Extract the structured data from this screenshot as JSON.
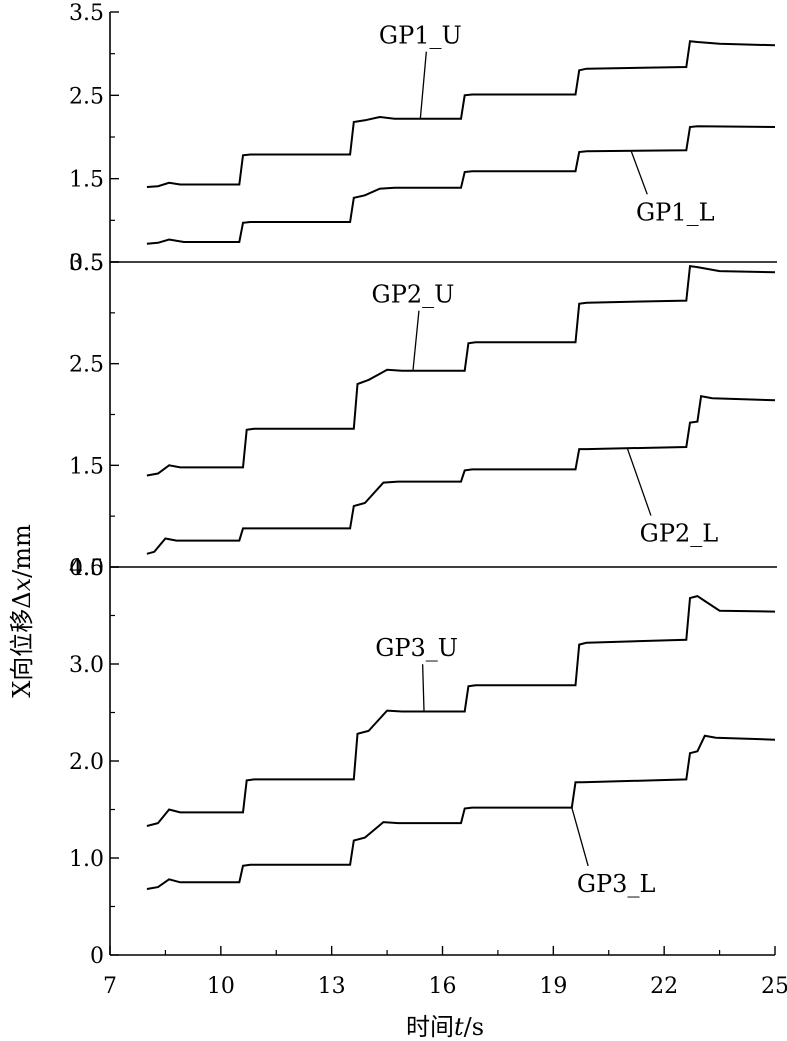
{
  "chart_data": {
    "type": "line",
    "layout": "three vertically stacked panels sharing the x axis",
    "grid": false,
    "xlabel_prefix": "时间",
    "xlabel_var": "t",
    "xlabel_unit": "/s",
    "ylabel_prefix": "X向位移Δ",
    "ylabel_var": "x",
    "ylabel_unit": "/mm",
    "xlim": [
      7,
      25
    ],
    "xticks": [
      "7",
      "10",
      "13",
      "16",
      "19",
      "22",
      "25"
    ],
    "panels": [
      {
        "ylim": [
          0.5,
          3.5
        ],
        "yticks": [
          "0.5",
          "1.5",
          "2.5",
          "3.5"
        ],
        "series": [
          {
            "name": "GP1_U",
            "points": [
              [
                8.0,
                1.4
              ],
              [
                8.3,
                1.41
              ],
              [
                8.6,
                1.45
              ],
              [
                8.9,
                1.43
              ],
              [
                10.5,
                1.43
              ],
              [
                10.6,
                1.78
              ],
              [
                10.8,
                1.79
              ],
              [
                13.5,
                1.79
              ],
              [
                13.6,
                2.18
              ],
              [
                13.9,
                2.2
              ],
              [
                14.3,
                2.24
              ],
              [
                14.7,
                2.22
              ],
              [
                16.5,
                2.22
              ],
              [
                16.6,
                2.5
              ],
              [
                16.8,
                2.51
              ],
              [
                19.6,
                2.51
              ],
              [
                19.7,
                2.8
              ],
              [
                19.9,
                2.82
              ],
              [
                22.6,
                2.84
              ],
              [
                22.7,
                3.15
              ],
              [
                22.9,
                3.14
              ],
              [
                23.5,
                3.12
              ],
              [
                25.0,
                3.1
              ]
            ],
            "label_at": [
              15.4,
              3.12
            ],
            "leader_to": [
              15.4,
              2.22
            ]
          },
          {
            "name": "GP1_L",
            "points": [
              [
                8.0,
                0.72
              ],
              [
                8.3,
                0.73
              ],
              [
                8.6,
                0.77
              ],
              [
                9.0,
                0.74
              ],
              [
                10.5,
                0.74
              ],
              [
                10.6,
                0.97
              ],
              [
                10.8,
                0.98
              ],
              [
                13.5,
                0.98
              ],
              [
                13.6,
                1.27
              ],
              [
                13.9,
                1.3
              ],
              [
                14.3,
                1.38
              ],
              [
                14.7,
                1.39
              ],
              [
                16.5,
                1.39
              ],
              [
                16.6,
                1.58
              ],
              [
                16.8,
                1.59
              ],
              [
                19.6,
                1.59
              ],
              [
                19.7,
                1.82
              ],
              [
                19.9,
                1.83
              ],
              [
                22.6,
                1.84
              ],
              [
                22.7,
                2.12
              ],
              [
                22.9,
                2.13
              ],
              [
                25.0,
                2.12
              ]
            ],
            "label_at": [
              22.3,
              1.0
            ],
            "leader_to": [
              21.1,
              1.84
            ]
          }
        ]
      },
      {
        "ylim": [
          0.5,
          3.5
        ],
        "yticks": [
          "0.5",
          "1.5",
          "2.5",
          "3.5"
        ],
        "series": [
          {
            "name": "GP2_U",
            "points": [
              [
                8.0,
                1.4
              ],
              [
                8.3,
                1.42
              ],
              [
                8.6,
                1.5
              ],
              [
                8.9,
                1.48
              ],
              [
                10.6,
                1.48
              ],
              [
                10.7,
                1.85
              ],
              [
                10.9,
                1.86
              ],
              [
                13.6,
                1.86
              ],
              [
                13.7,
                2.3
              ],
              [
                14.0,
                2.34
              ],
              [
                14.5,
                2.44
              ],
              [
                14.9,
                2.43
              ],
              [
                16.6,
                2.43
              ],
              [
                16.7,
                2.7
              ],
              [
                16.9,
                2.71
              ],
              [
                19.6,
                2.71
              ],
              [
                19.7,
                3.09
              ],
              [
                19.9,
                3.1
              ],
              [
                22.6,
                3.12
              ],
              [
                22.7,
                3.46
              ],
              [
                22.9,
                3.45
              ],
              [
                23.5,
                3.41
              ],
              [
                25.0,
                3.4
              ]
            ],
            "label_at": [
              15.2,
              3.1
            ],
            "leader_to": [
              15.2,
              2.43
            ]
          },
          {
            "name": "GP2_L",
            "points": [
              [
                8.0,
                0.63
              ],
              [
                8.2,
                0.65
              ],
              [
                8.5,
                0.78
              ],
              [
                8.8,
                0.76
              ],
              [
                10.5,
                0.76
              ],
              [
                10.6,
                0.88
              ],
              [
                10.8,
                0.88
              ],
              [
                13.5,
                0.88
              ],
              [
                13.6,
                1.1
              ],
              [
                13.9,
                1.13
              ],
              [
                14.4,
                1.33
              ],
              [
                14.8,
                1.34
              ],
              [
                16.5,
                1.34
              ],
              [
                16.6,
                1.45
              ],
              [
                16.8,
                1.46
              ],
              [
                19.6,
                1.46
              ],
              [
                19.7,
                1.66
              ],
              [
                19.9,
                1.66
              ],
              [
                22.6,
                1.68
              ],
              [
                22.7,
                1.92
              ],
              [
                22.9,
                1.93
              ],
              [
                23.0,
                2.18
              ],
              [
                23.3,
                2.16
              ],
              [
                25.0,
                2.14
              ]
            ],
            "label_at": [
              22.4,
              0.75
            ],
            "leader_to": [
              21.0,
              1.67
            ]
          }
        ]
      },
      {
        "ylim": [
          0,
          4.0
        ],
        "yticks": [
          "0",
          "1.0",
          "2.0",
          "3.0",
          "4.0"
        ],
        "series": [
          {
            "name": "GP3_U",
            "points": [
              [
                8.0,
                1.33
              ],
              [
                8.3,
                1.36
              ],
              [
                8.6,
                1.5
              ],
              [
                8.9,
                1.47
              ],
              [
                10.6,
                1.47
              ],
              [
                10.7,
                1.8
              ],
              [
                10.9,
                1.81
              ],
              [
                13.6,
                1.81
              ],
              [
                13.7,
                2.28
              ],
              [
                14.0,
                2.31
              ],
              [
                14.5,
                2.52
              ],
              [
                14.9,
                2.51
              ],
              [
                16.6,
                2.51
              ],
              [
                16.7,
                2.77
              ],
              [
                16.9,
                2.78
              ],
              [
                19.6,
                2.78
              ],
              [
                19.7,
                3.2
              ],
              [
                19.9,
                3.22
              ],
              [
                22.6,
                3.25
              ],
              [
                22.7,
                3.68
              ],
              [
                22.9,
                3.7
              ],
              [
                23.1,
                3.65
              ],
              [
                23.5,
                3.55
              ],
              [
                25.0,
                3.54
              ]
            ],
            "label_at": [
              15.3,
              3.08
            ],
            "leader_to": [
              15.5,
              2.51
            ]
          },
          {
            "name": "GP3_L",
            "points": [
              [
                8.0,
                0.68
              ],
              [
                8.3,
                0.7
              ],
              [
                8.6,
                0.78
              ],
              [
                8.9,
                0.75
              ],
              [
                10.5,
                0.75
              ],
              [
                10.6,
                0.92
              ],
              [
                10.8,
                0.93
              ],
              [
                13.5,
                0.93
              ],
              [
                13.6,
                1.18
              ],
              [
                13.9,
                1.21
              ],
              [
                14.4,
                1.37
              ],
              [
                14.8,
                1.36
              ],
              [
                16.5,
                1.36
              ],
              [
                16.6,
                1.51
              ],
              [
                16.8,
                1.52
              ],
              [
                19.5,
                1.52
              ],
              [
                19.6,
                1.78
              ],
              [
                19.8,
                1.78
              ],
              [
                22.6,
                1.81
              ],
              [
                22.7,
                2.08
              ],
              [
                22.9,
                2.1
              ],
              [
                23.1,
                2.26
              ],
              [
                23.4,
                2.24
              ],
              [
                25.0,
                2.22
              ]
            ],
            "label_at": [
              20.7,
              0.65
            ],
            "leader_to": [
              19.5,
              1.52
            ]
          }
        ]
      }
    ]
  }
}
